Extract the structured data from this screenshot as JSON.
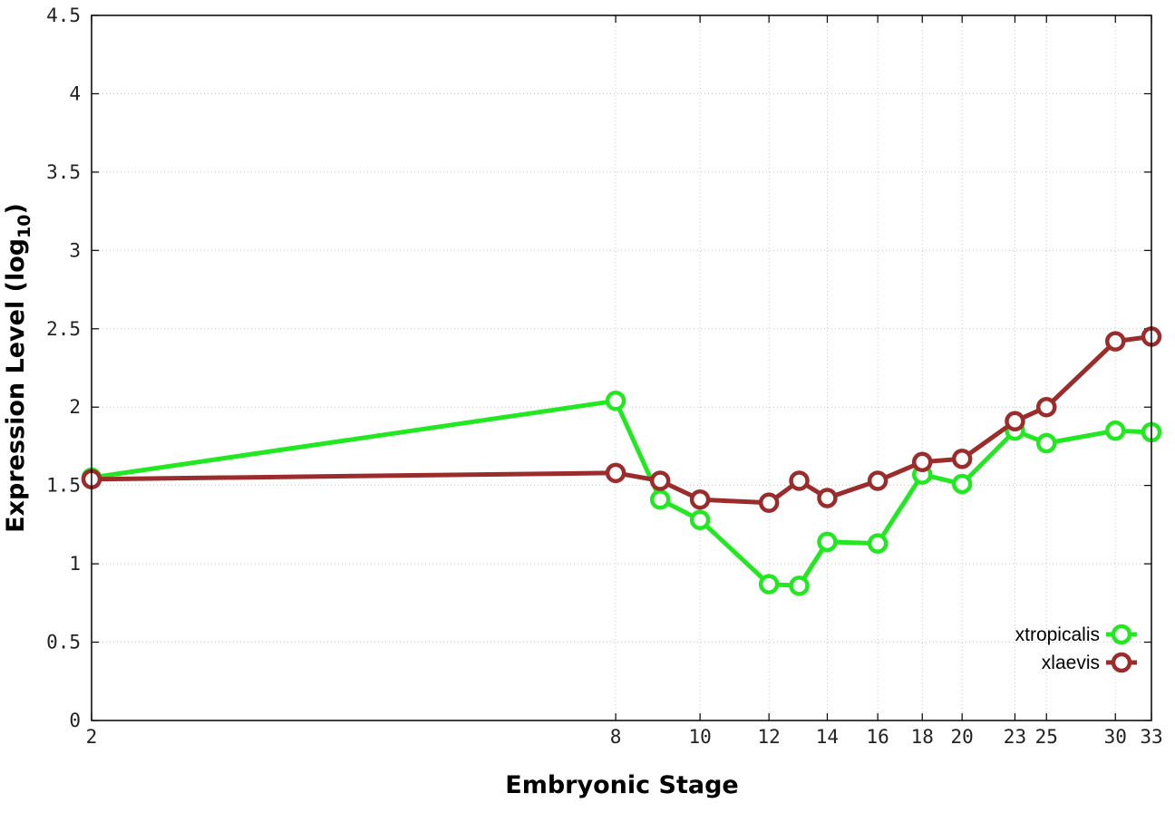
{
  "chart_data": {
    "type": "line",
    "title": "",
    "xlabel": "Embryonic Stage",
    "ylabel_main": "Expression Level (log",
    "ylabel_sub": "10",
    "ylabel_close": ")",
    "x_ticks": [
      "2",
      "8",
      "10",
      "12",
      "14",
      "16",
      "18",
      "20",
      "23",
      "25",
      "30",
      "33"
    ],
    "y_ticks": [
      "0",
      "0.5",
      "1",
      "1.5",
      "2",
      "2.5",
      "3",
      "3.5",
      "4",
      "4.5"
    ],
    "xlim": [
      2,
      33
    ],
    "ylim": [
      0,
      4.5
    ],
    "x_scale": "log",
    "grid": true,
    "legend_position": "bottom-right",
    "x": [
      2,
      8,
      9,
      10,
      12,
      13,
      14,
      16,
      18,
      20,
      23,
      25,
      30,
      33
    ],
    "series": [
      {
        "name": "xtropicalis",
        "color": "#22e822",
        "values": [
          1.55,
          2.04,
          1.41,
          1.28,
          0.87,
          0.86,
          1.14,
          1.13,
          1.57,
          1.51,
          1.85,
          1.77,
          1.85,
          1.84
        ]
      },
      {
        "name": "xlaevis",
        "color": "#9b2c2c",
        "values": [
          1.54,
          1.58,
          1.53,
          1.41,
          1.39,
          1.53,
          1.42,
          1.53,
          1.65,
          1.67,
          1.91,
          2.0,
          2.42,
          2.45
        ]
      }
    ]
  }
}
